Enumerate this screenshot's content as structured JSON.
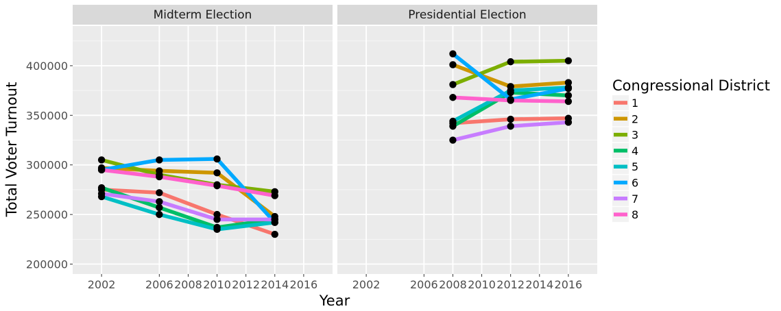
{
  "chart_data": {
    "type": "line",
    "ylabel": "Total Voter Turnout",
    "xlabel": "Year",
    "ylim": [
      190000,
      440000
    ],
    "xlim": [
      2000,
      2018
    ],
    "x_ticks": [
      "2002",
      "2006",
      "2008",
      "2010",
      "2012",
      "2014",
      "2016"
    ],
    "y_ticks": [
      "200000",
      "250000",
      "300000",
      "350000",
      "400000"
    ],
    "x_tick_values": [
      2002,
      2006,
      2008,
      2010,
      2012,
      2014,
      2016
    ],
    "y_tick_values": [
      200000,
      250000,
      300000,
      350000,
      400000
    ],
    "legend": {
      "title": "Congressional District",
      "position": "right",
      "entries": [
        "1",
        "2",
        "3",
        "4",
        "5",
        "6",
        "7",
        "8"
      ]
    },
    "series_colors": [
      "#F8766D",
      "#CD9600",
      "#7CAE00",
      "#00BE67",
      "#00BFC4",
      "#00A9FF",
      "#C77CFF",
      "#FF61CC"
    ],
    "panels": [
      {
        "title": "Midterm Election",
        "x": [
          2002,
          2006,
          2010,
          2014
        ],
        "series": [
          {
            "name": "1",
            "values": [
              275000,
              272000,
              250000,
              230000
            ]
          },
          {
            "name": "2",
            "values": [
              297000,
              294000,
              292000,
              248000
            ]
          },
          {
            "name": "3",
            "values": [
              305000,
              290000,
              280000,
              273000
            ]
          },
          {
            "name": "4",
            "values": [
              277000,
              257000,
              237000,
              245000
            ]
          },
          {
            "name": "5",
            "values": [
              268000,
              250000,
              235000,
              242000
            ]
          },
          {
            "name": "6",
            "values": [
              295000,
              305000,
              306000,
              242000
            ]
          },
          {
            "name": "7",
            "values": [
              271000,
              263000,
              245000,
              245000
            ]
          },
          {
            "name": "8",
            "values": [
              295000,
              288000,
              279000,
              269000
            ]
          }
        ]
      },
      {
        "title": "Presidential Election",
        "x": [
          2008,
          2012,
          2016
        ],
        "series": [
          {
            "name": "1",
            "values": [
              342000,
              346000,
              347000
            ]
          },
          {
            "name": "2",
            "values": [
              401000,
              379000,
              383000
            ]
          },
          {
            "name": "3",
            "values": [
              381000,
              404000,
              405000
            ]
          },
          {
            "name": "4",
            "values": [
              339000,
              373000,
              370000
            ]
          },
          {
            "name": "5",
            "values": [
              344000,
              375000,
              378000
            ]
          },
          {
            "name": "6",
            "values": [
              412000,
              366000,
              377000
            ]
          },
          {
            "name": "7",
            "values": [
              325000,
              339000,
              343000
            ]
          },
          {
            "name": "8",
            "values": [
              368000,
              365000,
              364000
            ]
          }
        ]
      }
    ]
  }
}
